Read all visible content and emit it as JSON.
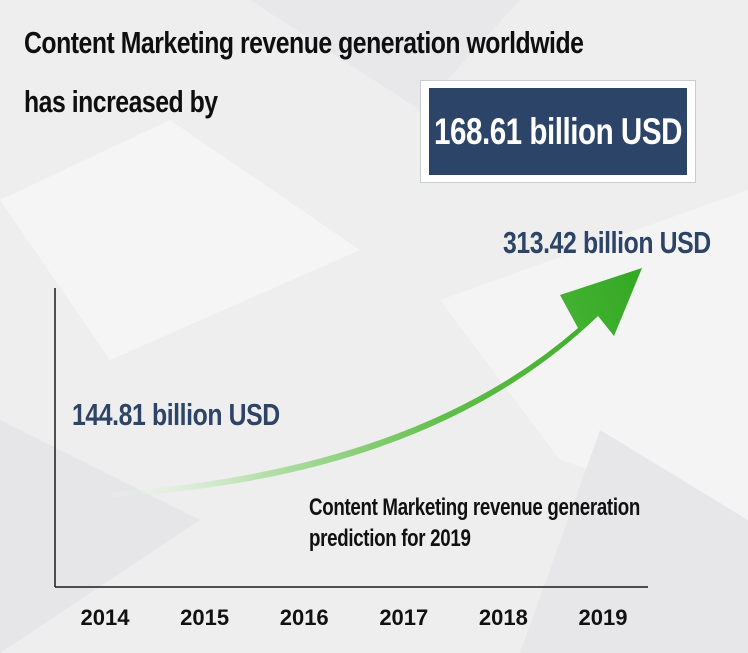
{
  "title": {
    "line1": "Content Marketing revenue generation worldwide",
    "line2": "has increased by"
  },
  "highlight": "168.61 billion USD",
  "annotations": {
    "end_value": "313.42 billion USD",
    "start_value": "144.81 billion USD",
    "note_line1": "Content Marketing revenue generation",
    "note_line2": "prediction for 2019"
  },
  "colors": {
    "navy": "#2c4467",
    "arrow_green": "#3fae2a",
    "axis": "#1a1a1a"
  },
  "chart_data": {
    "type": "line",
    "x": [
      "2014",
      "2015",
      "2016",
      "2017",
      "2018",
      "2019"
    ],
    "series": [
      {
        "values": [
          144.81,
          null,
          null,
          null,
          null,
          313.42
        ]
      }
    ],
    "xlabel": "",
    "ylabel": "",
    "grid": false,
    "legend": "none",
    "ylim": [
      100,
      330
    ]
  }
}
